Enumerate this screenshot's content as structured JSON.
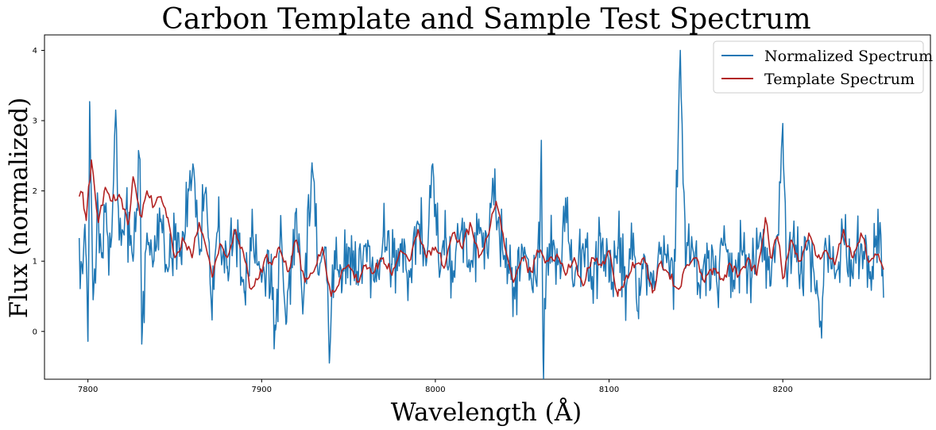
{
  "chart_data": {
    "type": "line",
    "title": "Carbon Template and Sample Test Spectrum",
    "xlabel": "Wavelength (Å)",
    "ylabel": "Flux (normalized)",
    "xlim": [
      7775,
      8285
    ],
    "ylim": [
      -0.68,
      4.22
    ],
    "x_ticks": [
      7800,
      7900,
      8000,
      8100,
      8200
    ],
    "y_ticks": [
      0,
      1,
      2,
      3,
      4
    ],
    "x_tick_labels": [
      "7800",
      "7900",
      "8000",
      "8100",
      "8200"
    ],
    "y_tick_labels": [
      "0",
      "1",
      "2",
      "3",
      "4"
    ],
    "grid": false,
    "legend_position": "top-right",
    "series": [
      {
        "name": "Normalized Spectrum",
        "color": "#1f77b4",
        "x_start": 7795,
        "x_end": 8258,
        "anchors": [
          [
            7795,
            1.33
          ],
          [
            7797,
            0.82
          ],
          [
            7798,
            1.45
          ],
          [
            7799,
            1.05
          ],
          [
            7800,
            -0.14
          ],
          [
            7801,
            3.27
          ],
          [
            7803,
            0.45
          ],
          [
            7806,
            1.7
          ],
          [
            7808,
            1.05
          ],
          [
            7810,
            1.75
          ],
          [
            7812,
            0.8
          ],
          [
            7814,
            1.6
          ],
          [
            7816,
            3.15
          ],
          [
            7818,
            1.3
          ],
          [
            7822,
            1.75
          ],
          [
            7826,
            1.0
          ],
          [
            7830,
            2.45
          ],
          [
            7831,
            -0.18
          ],
          [
            7834,
            1.4
          ],
          [
            7838,
            1.0
          ],
          [
            7842,
            1.6
          ],
          [
            7846,
            0.85
          ],
          [
            7850,
            1.3
          ],
          [
            7854,
            0.95
          ],
          [
            7858,
            2.0
          ],
          [
            7861,
            2.3
          ],
          [
            7864,
            1.2
          ],
          [
            7868,
            2.05
          ],
          [
            7871,
            0.4
          ],
          [
            7875,
            1.5
          ],
          [
            7880,
            0.9
          ],
          [
            7885,
            1.45
          ],
          [
            7890,
            0.55
          ],
          [
            7895,
            1.35
          ],
          [
            7900,
            0.7
          ],
          [
            7904,
            1.15
          ],
          [
            7908,
            0.02
          ],
          [
            7911,
            1.65
          ],
          [
            7914,
            0.1
          ],
          [
            7917,
            1.05
          ],
          [
            7920,
            1.75
          ],
          [
            7924,
            0.4
          ],
          [
            7929,
            2.4
          ],
          [
            7933,
            0.8
          ],
          [
            7937,
            1.2
          ],
          [
            7939,
            -0.45
          ],
          [
            7942,
            1.15
          ],
          [
            7946,
            0.55
          ],
          [
            7950,
            1.2
          ],
          [
            7955,
            0.85
          ],
          [
            7960,
            1.25
          ],
          [
            7965,
            0.7
          ],
          [
            7970,
            1.35
          ],
          [
            7975,
            0.95
          ],
          [
            7980,
            1.25
          ],
          [
            7985,
            0.85
          ],
          [
            7990,
            1.55
          ],
          [
            7995,
            1.0
          ],
          [
            7998,
            2.35
          ],
          [
            8002,
            0.95
          ],
          [
            8006,
            1.35
          ],
          [
            8010,
            0.7
          ],
          [
            8015,
            1.45
          ],
          [
            8020,
            0.85
          ],
          [
            8025,
            1.6
          ],
          [
            8030,
            1.1
          ],
          [
            8033,
            2.18
          ],
          [
            8036,
            1.55
          ],
          [
            8040,
            1.05
          ],
          [
            8045,
            0.6
          ],
          [
            8050,
            1.2
          ],
          [
            8055,
            0.75
          ],
          [
            8060,
            1.05
          ],
          [
            8061,
            2.72
          ],
          [
            8062,
            -0.38
          ],
          [
            8064,
            1.0
          ],
          [
            8068,
            1.3
          ],
          [
            8072,
            0.75
          ],
          [
            8075,
            1.9
          ],
          [
            8080,
            0.65
          ],
          [
            8085,
            1.25
          ],
          [
            8090,
            0.6
          ],
          [
            8095,
            1.4
          ],
          [
            8100,
            0.7
          ],
          [
            8105,
            1.2
          ],
          [
            8110,
            0.65
          ],
          [
            8114,
            1.4
          ],
          [
            8117,
            0.18
          ],
          [
            8120,
            1.1
          ],
          [
            8125,
            0.6
          ],
          [
            8130,
            1.2
          ],
          [
            8135,
            0.75
          ],
          [
            8138,
            1.0
          ],
          [
            8141,
            4.0
          ],
          [
            8144,
            0.9
          ],
          [
            8148,
            1.2
          ],
          [
            8152,
            0.65
          ],
          [
            8157,
            1.05
          ],
          [
            8162,
            0.7
          ],
          [
            8167,
            1.25
          ],
          [
            8172,
            0.7
          ],
          [
            8177,
            1.15
          ],
          [
            8182,
            0.75
          ],
          [
            8186,
            1.2
          ],
          [
            8190,
            1.2
          ],
          [
            8193,
            0.65
          ],
          [
            8197,
            1.35
          ],
          [
            8200,
            2.96
          ],
          [
            8202,
            0.95
          ],
          [
            8206,
            1.35
          ],
          [
            8210,
            0.8
          ],
          [
            8215,
            1.3
          ],
          [
            8220,
            0.55
          ],
          [
            8222,
            0.1
          ],
          [
            8225,
            1.2
          ],
          [
            8230,
            0.75
          ],
          [
            8235,
            1.3
          ],
          [
            8240,
            0.8
          ],
          [
            8245,
            1.25
          ],
          [
            8250,
            0.75
          ],
          [
            8253,
            1.2
          ],
          [
            8256,
            1.55
          ],
          [
            8258,
            0.48
          ]
        ]
      },
      {
        "name": "Template Spectrum",
        "color": "#b22222",
        "x_start": 7795,
        "x_end": 8258,
        "anchors": [
          [
            7795,
            1.92
          ],
          [
            7797,
            1.98
          ],
          [
            7799,
            1.58
          ],
          [
            7802,
            2.44
          ],
          [
            7806,
            1.55
          ],
          [
            7810,
            2.05
          ],
          [
            7814,
            1.85
          ],
          [
            7818,
            1.95
          ],
          [
            7823,
            1.52
          ],
          [
            7826,
            2.2
          ],
          [
            7830,
            1.65
          ],
          [
            7834,
            2.0
          ],
          [
            7838,
            1.78
          ],
          [
            7842,
            1.92
          ],
          [
            7846,
            1.62
          ],
          [
            7850,
            1.05
          ],
          [
            7855,
            1.3
          ],
          [
            7860,
            1.05
          ],
          [
            7864,
            1.55
          ],
          [
            7868,
            1.2
          ],
          [
            7872,
            0.8
          ],
          [
            7876,
            1.25
          ],
          [
            7880,
            1.05
          ],
          [
            7885,
            1.45
          ],
          [
            7890,
            1.05
          ],
          [
            7894,
            0.6
          ],
          [
            7898,
            0.75
          ],
          [
            7902,
            1.05
          ],
          [
            7906,
            0.95
          ],
          [
            7910,
            1.2
          ],
          [
            7915,
            0.85
          ],
          [
            7920,
            1.3
          ],
          [
            7925,
            0.7
          ],
          [
            7930,
            0.85
          ],
          [
            7935,
            1.2
          ],
          [
            7940,
            0.5
          ],
          [
            7945,
            0.75
          ],
          [
            7950,
            0.95
          ],
          [
            7955,
            0.7
          ],
          [
            7960,
            0.95
          ],
          [
            7965,
            0.85
          ],
          [
            7970,
            1.05
          ],
          [
            7975,
            0.8
          ],
          [
            7980,
            1.15
          ],
          [
            7985,
            1.0
          ],
          [
            7990,
            1.45
          ],
          [
            7995,
            1.05
          ],
          [
            8000,
            1.2
          ],
          [
            8005,
            0.9
          ],
          [
            8010,
            1.4
          ],
          [
            8015,
            1.2
          ],
          [
            8020,
            1.55
          ],
          [
            8025,
            1.05
          ],
          [
            8030,
            1.35
          ],
          [
            8035,
            1.85
          ],
          [
            8040,
            1.2
          ],
          [
            8045,
            0.7
          ],
          [
            8050,
            1.05
          ],
          [
            8055,
            0.85
          ],
          [
            8060,
            1.15
          ],
          [
            8065,
            1.0
          ],
          [
            8070,
            1.1
          ],
          [
            8075,
            0.8
          ],
          [
            8080,
            1.05
          ],
          [
            8085,
            0.65
          ],
          [
            8090,
            1.05
          ],
          [
            8095,
            0.95
          ],
          [
            8100,
            1.15
          ],
          [
            8105,
            0.5
          ],
          [
            8110,
            0.8
          ],
          [
            8115,
            0.95
          ],
          [
            8120,
            1.05
          ],
          [
            8125,
            0.55
          ],
          [
            8130,
            1.0
          ],
          [
            8135,
            0.75
          ],
          [
            8140,
            0.6
          ],
          [
            8145,
            0.95
          ],
          [
            8150,
            1.05
          ],
          [
            8155,
            0.7
          ],
          [
            8160,
            0.9
          ],
          [
            8165,
            0.75
          ],
          [
            8170,
            0.95
          ],
          [
            8175,
            0.8
          ],
          [
            8180,
            1.05
          ],
          [
            8185,
            0.8
          ],
          [
            8190,
            1.62
          ],
          [
            8193,
            1.05
          ],
          [
            8197,
            1.35
          ],
          [
            8200,
            0.75
          ],
          [
            8205,
            1.3
          ],
          [
            8210,
            1.0
          ],
          [
            8215,
            1.4
          ],
          [
            8220,
            1.05
          ],
          [
            8225,
            1.15
          ],
          [
            8230,
            0.95
          ],
          [
            8235,
            1.45
          ],
          [
            8240,
            1.05
          ],
          [
            8245,
            1.4
          ],
          [
            8250,
            1.0
          ],
          [
            8255,
            1.1
          ],
          [
            8258,
            0.88
          ]
        ]
      }
    ]
  }
}
